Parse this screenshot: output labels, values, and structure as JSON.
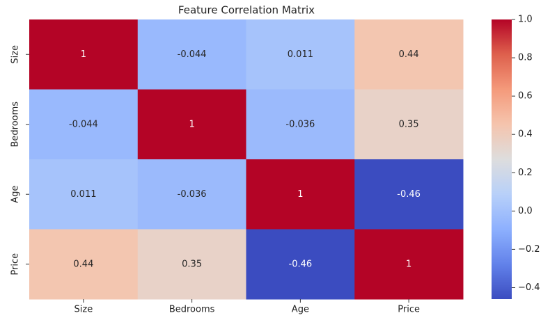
{
  "chart_data": {
    "type": "heatmap",
    "title": "Feature Correlation Matrix",
    "x_categories": [
      "Size",
      "Bedrooms",
      "Age",
      "Price"
    ],
    "y_categories": [
      "Size",
      "Bedrooms",
      "Age",
      "Price"
    ],
    "values": [
      [
        1,
        -0.044,
        0.011,
        0.44
      ],
      [
        -0.044,
        1,
        -0.036,
        0.35
      ],
      [
        0.011,
        -0.036,
        1,
        -0.46
      ],
      [
        0.44,
        0.35,
        -0.46,
        1
      ]
    ],
    "colormap": "coolwarm",
    "zlim": [
      -0.46,
      1
    ],
    "zticks": [
      {
        "value": -0.4,
        "label": "−0.4"
      },
      {
        "value": -0.2,
        "label": "−0.2"
      },
      {
        "value": 0,
        "label": "0.0"
      },
      0.2,
      0.4,
      0.6,
      0.8,
      {
        "value": 1,
        "label": "1.0"
      }
    ]
  }
}
